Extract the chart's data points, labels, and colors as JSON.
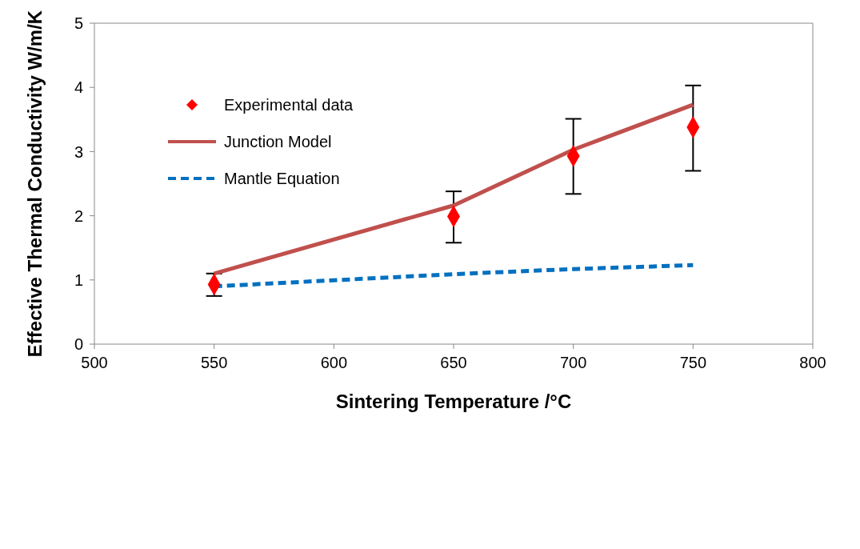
{
  "chart_data": {
    "type": "line",
    "xlabel": "Sintering Temperature /°C",
    "ylabel": "Effective Thermal Conductivity W/m/K",
    "xlim": [
      500,
      800
    ],
    "xticks": [
      500,
      550,
      600,
      650,
      700,
      750,
      800
    ],
    "ylim": [
      0,
      5
    ],
    "yticks": [
      0,
      1,
      2,
      3,
      4,
      5
    ],
    "grid": false,
    "legend": "top left",
    "series": [
      {
        "name": "Experimental data",
        "type": "scatter",
        "marker": "diamond",
        "color": "#ff0000",
        "x": [
          550,
          650,
          700,
          750
        ],
        "values": [
          0.93,
          1.99,
          2.93,
          3.38
        ],
        "errors": [
          [
            0.75,
            1.1
          ],
          [
            1.58,
            2.38
          ],
          [
            2.34,
            3.51
          ],
          [
            2.7,
            4.03
          ]
        ]
      },
      {
        "name": "Junction Model",
        "line_style": "solid",
        "color": "#c0504d",
        "x": [
          550,
          650,
          700,
          750
        ],
        "values": [
          1.1,
          2.16,
          3.03,
          3.73
        ]
      },
      {
        "name": "Mantle Equation",
        "line_style": "dashed",
        "color": "#0070c0",
        "x": [
          550,
          650,
          700,
          750
        ],
        "values": [
          0.9,
          1.09,
          1.17,
          1.23
        ]
      }
    ]
  }
}
